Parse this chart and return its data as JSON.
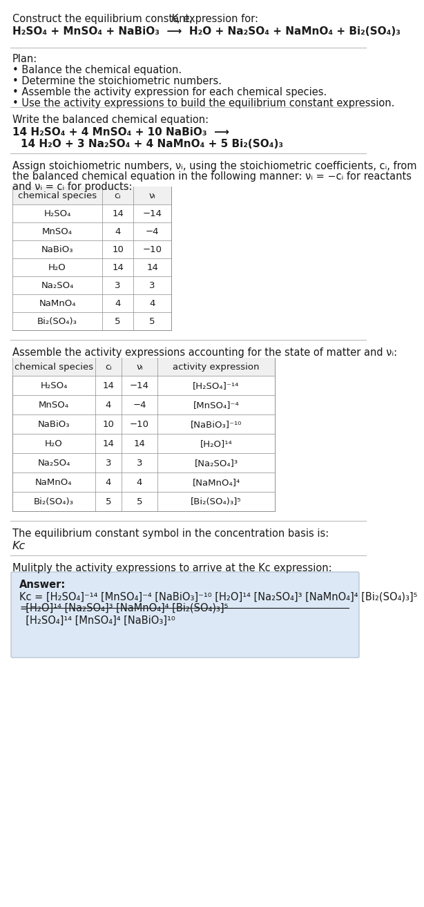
{
  "title_line1": "Construct the equilibrium constant, ",
  "title_K": "K",
  "title_line2": ", expression for:",
  "reaction_unbalanced": "H₂SO₄ + MnSO₄ + NaBiO₃ ⟶ H₂O + Na₂SO₄ + NaMnO₄ + Bi₂(SO₄)₃",
  "plan_header": "Plan:",
  "plan_items": [
    "• Balance the chemical equation.",
    "• Determine the stoichiometric numbers.",
    "• Assemble the activity expression for each chemical species.",
    "• Use the activity expressions to build the equilibrium constant expression."
  ],
  "balanced_header": "Write the balanced chemical equation:",
  "balanced_line1": "14 H₂SO₄ + 4 MnSO₄ + 10 NaBiO₃ ⟶",
  "balanced_line2": "  14 H₂O + 3 Na₂SO₄ + 4 NaMnO₄ + 5 Bi₂(SO₄)₃",
  "assign_text": "Assign stoichiometric numbers, νᵢ, using the stoichiometric coefficients, cᵢ, from the balanced chemical equation in the following manner: νᵢ = −cᵢ for reactants and νᵢ = cᵢ for products:",
  "table1_headers": [
    "chemical species",
    "cᵢ",
    "νᵢ"
  ],
  "table1_rows": [
    [
      "H₂SO₄",
      "14",
      "−14"
    ],
    [
      "MnSO₄",
      "4",
      "−4"
    ],
    [
      "NaBiO₃",
      "10",
      "−10"
    ],
    [
      "H₂O",
      "14",
      "14"
    ],
    [
      "Na₂SO₄",
      "3",
      "3"
    ],
    [
      "NaMnO₄",
      "4",
      "4"
    ],
    [
      "Bi₂(SO₄)₃",
      "5",
      "5"
    ]
  ],
  "assemble_text": "Assemble the activity expressions accounting for the state of matter and νᵢ:",
  "table2_headers": [
    "chemical species",
    "cᵢ",
    "νᵢ",
    "activity expression"
  ],
  "table2_rows": [
    [
      "H₂SO₄",
      "14",
      "−14",
      "[H₂SO₄]⁻¹⁴"
    ],
    [
      "MnSO₄",
      "4",
      "−4",
      "[MnSO₄]⁻⁴"
    ],
    [
      "NaBiO₃",
      "10",
      "−10",
      "[NaBiO₃]⁻¹⁰"
    ],
    [
      "H₂O",
      "14",
      "14",
      "[H₂O]¹⁴"
    ],
    [
      "Na₂SO₄",
      "3",
      "3",
      "[Na₂SO₄]³"
    ],
    [
      "NaMnO₄",
      "4",
      "4",
      "[NaMnO₄]⁴"
    ],
    [
      "Bi₂(SO₄)₃",
      "5",
      "5",
      "[Bi₂(SO₄)₃]⁵"
    ]
  ],
  "kc_text": "The equilibrium constant symbol in the concentration basis is:",
  "kc_symbol": "Kᴄ",
  "multiply_text": "Mulitply the activity expressions to arrive at the Kᴄ expression:",
  "answer_label": "Answer:",
  "bg_color": "#ffffff",
  "table_bg": "#f8f8f8",
  "answer_bg": "#e8f0f8",
  "text_color": "#1a1a1a",
  "font_size": 10,
  "header_font_size": 10
}
